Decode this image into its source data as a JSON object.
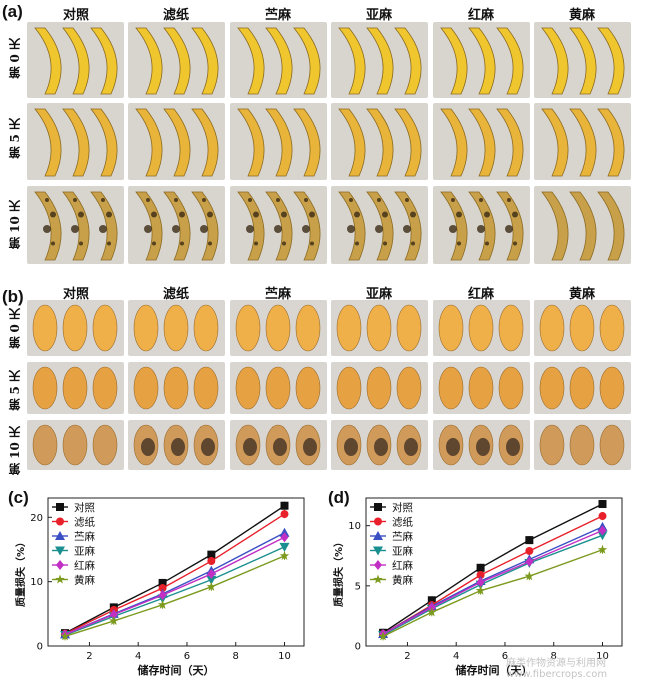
{
  "figure": {
    "panels": {
      "a": "(a)",
      "b": "(b)",
      "c": "(c)",
      "d": "(d)"
    },
    "column_headers": [
      "对照",
      "滤纸",
      "苎麻",
      "亚麻",
      "红麻",
      "黄麻"
    ],
    "row_labels": [
      "第 0 天",
      "第 5 天",
      "第 10 天"
    ],
    "banana_grid_colors": [
      "#f0c62e",
      "#e9b43a",
      "#c9a04a"
    ],
    "mango_grid_colors": [
      "#efb04a",
      "#e5a142",
      "#cf9a5a"
    ]
  },
  "chart_data": [
    {
      "type": "line",
      "panel": "(c)",
      "xlabel": "储存时间（天）",
      "ylabel": "质量损失（%）",
      "xlim": [
        0.3,
        10.8
      ],
      "ylim": [
        0,
        23
      ],
      "xticks": [
        2,
        4,
        6,
        8,
        10
      ],
      "yticks": [
        0,
        10,
        20
      ],
      "legend_position": "top-left",
      "x": [
        1,
        3,
        5,
        7,
        10
      ],
      "series": [
        {
          "name": "对照",
          "color": "#111111",
          "marker": "square",
          "values": [
            2.0,
            6.0,
            9.8,
            14.2,
            21.8
          ]
        },
        {
          "name": "滤纸",
          "color": "#e8202a",
          "marker": "circle",
          "values": [
            1.9,
            5.6,
            9.0,
            13.2,
            20.5
          ]
        },
        {
          "name": "苎麻",
          "color": "#3b4fc4",
          "marker": "triangle-up",
          "values": [
            1.8,
            5.0,
            8.1,
            11.7,
            17.6
          ]
        },
        {
          "name": "亚麻",
          "color": "#1a8f8f",
          "marker": "triangle-down",
          "values": [
            1.7,
            4.6,
            7.4,
            10.3,
            15.4
          ]
        },
        {
          "name": "红麻",
          "color": "#c12fc4",
          "marker": "diamond",
          "values": [
            1.8,
            4.9,
            7.9,
            11.2,
            16.9
          ]
        },
        {
          "name": "黄麻",
          "color": "#7c9a1e",
          "marker": "star",
          "values": [
            1.5,
            3.9,
            6.4,
            9.2,
            14.0
          ]
        }
      ]
    },
    {
      "type": "line",
      "panel": "(d)",
      "xlabel": "储存时间（天）",
      "ylabel": "质量损失（%）",
      "xlim": [
        0.3,
        10.8
      ],
      "ylim": [
        0,
        12.3
      ],
      "xticks": [
        2,
        4,
        6,
        8,
        10
      ],
      "yticks": [
        0,
        5,
        10
      ],
      "legend_position": "top-left",
      "x": [
        1,
        3,
        5,
        7,
        10
      ],
      "series": [
        {
          "name": "对照",
          "color": "#111111",
          "marker": "square",
          "values": [
            1.1,
            3.8,
            6.5,
            8.8,
            11.8
          ]
        },
        {
          "name": "滤纸",
          "color": "#e8202a",
          "marker": "circle",
          "values": [
            1.0,
            3.4,
            5.9,
            7.9,
            10.8
          ]
        },
        {
          "name": "苎麻",
          "color": "#3b4fc4",
          "marker": "triangle-up",
          "values": [
            1.0,
            3.3,
            5.4,
            7.2,
            9.9
          ]
        },
        {
          "name": "亚麻",
          "color": "#1a8f8f",
          "marker": "triangle-down",
          "values": [
            0.9,
            3.1,
            5.1,
            6.9,
            9.2
          ]
        },
        {
          "name": "红麻",
          "color": "#c12fc4",
          "marker": "diamond",
          "values": [
            1.0,
            3.2,
            5.3,
            7.0,
            9.6
          ]
        },
        {
          "name": "黄麻",
          "color": "#7c9a1e",
          "marker": "star",
          "values": [
            0.8,
            2.8,
            4.6,
            5.8,
            8.0
          ]
        }
      ]
    }
  ],
  "watermark": "麻类作物资源与利用网 www.fibercrops.com"
}
